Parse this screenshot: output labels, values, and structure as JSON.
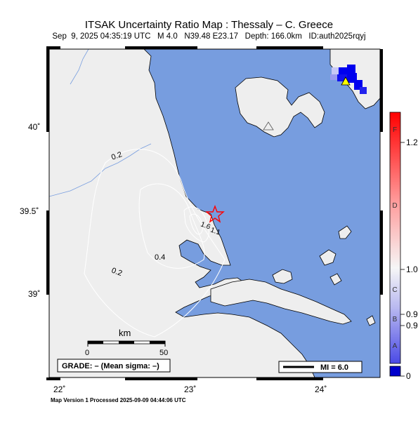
{
  "map": {
    "title": "ITSAK Uncertainty Ratio Map : Thessaly – C. Greece",
    "subtitle": "Sep  9, 2025 04:35:19 UTC   M 4.0   N39.48 E23.17   Depth: 166.0km   ID:auth2025rqyj",
    "footer": "Map Version 1 Processed 2025-09-09 04:44:06 UTC",
    "grade_label": "GRADE: – (Mean sigma: –)",
    "mi_label": "MI = 6.0",
    "scale_unit": "km",
    "scale_start": "0",
    "scale_end": "50",
    "lat_labels": [
      "40˚",
      "39.5˚",
      "39˚"
    ],
    "lon_labels": [
      "22˚",
      "23˚",
      "24˚"
    ],
    "contour_labels": [
      "0.2",
      "1.6",
      "1.1",
      "0.4",
      "0.2"
    ],
    "colorbar": {
      "ticks": [
        "1.2",
        "1.0",
        "0.9",
        "0.9",
        "0"
      ],
      "grades": [
        "F",
        "D",
        "C",
        "B",
        "A"
      ],
      "top_color": "#ff0000",
      "mid_color": "#f4f4f4",
      "low_color": "#3333ee",
      "bottom_color": "#0000cc"
    },
    "colors": {
      "sea": "#779ddf",
      "land": "#eeeeee",
      "epicenter": "#ff0000",
      "station": "#ffff00",
      "high_ratio": "#0000ee"
    },
    "markers": {
      "epicenter_icon": "star-icon",
      "station_icon": "triangle-icon"
    }
  }
}
